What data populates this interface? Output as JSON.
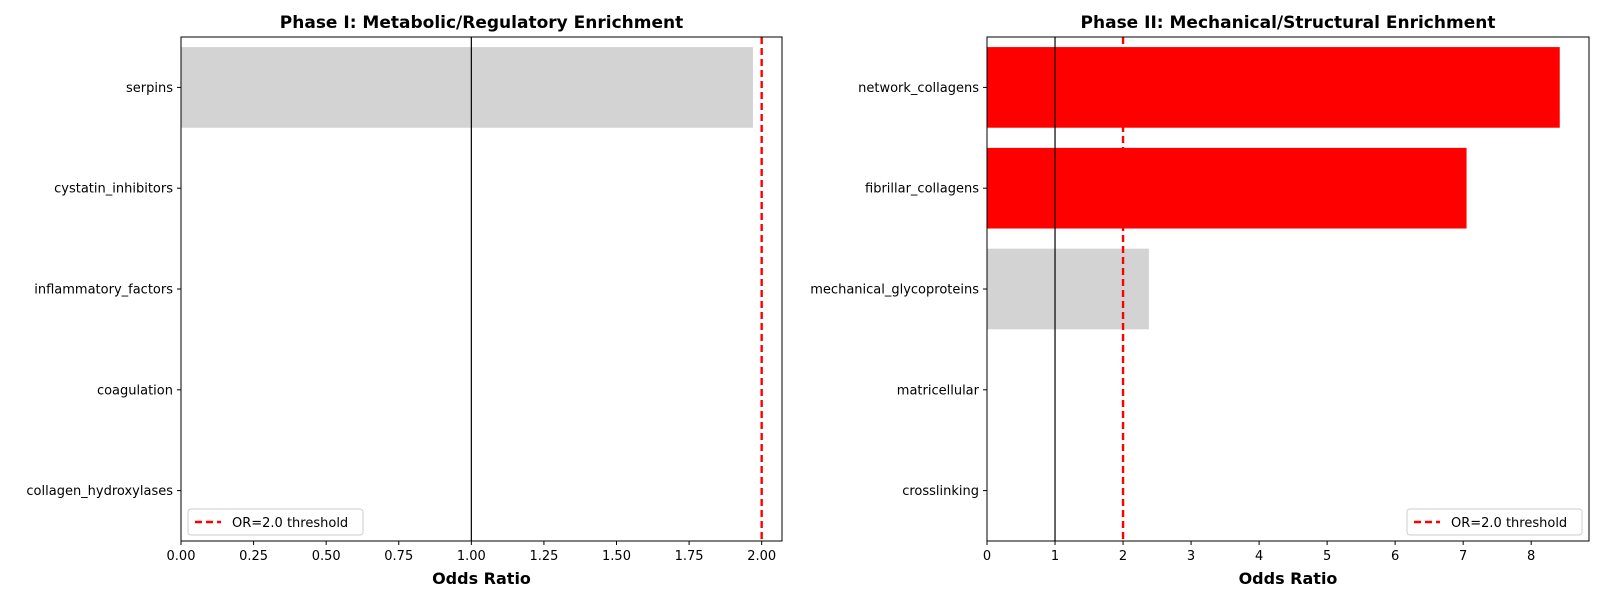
{
  "chart_data": [
    {
      "type": "bar",
      "orientation": "horizontal",
      "title": "Phase I: Metabolic/Regulatory Enrichment",
      "xlabel": "Odds Ratio",
      "ylabel": "",
      "categories": [
        "serpins",
        "cystatin_inhibitors",
        "inflammatory_factors",
        "coagulation",
        "collagen_hydroxylases"
      ],
      "values": [
        1.97,
        0,
        0,
        0,
        0
      ],
      "bar_colors": [
        "#d3d3d3",
        "#d3d3d3",
        "#d3d3d3",
        "#d3d3d3",
        "#d3d3d3"
      ],
      "xlim": [
        0,
        2.07
      ],
      "xticks": [
        "0.00",
        "0.25",
        "0.50",
        "0.75",
        "1.00",
        "1.25",
        "1.50",
        "1.75",
        "2.00"
      ],
      "xtick_values": [
        0,
        0.25,
        0.5,
        0.75,
        1.0,
        1.25,
        1.5,
        1.75,
        2.0
      ],
      "reference_line": 1.0,
      "threshold_line": 2.0,
      "threshold_color": "#ff0000",
      "legend": {
        "label": "OR=2.0 threshold",
        "placement": "lower-left"
      },
      "grid": false
    },
    {
      "type": "bar",
      "orientation": "horizontal",
      "title": "Phase II: Mechanical/Structural Enrichment",
      "xlabel": "Odds Ratio",
      "ylabel": "",
      "categories": [
        "network_collagens",
        "fibrillar_collagens",
        "mechanical_glycoproteins",
        "matricellular",
        "crosslinking"
      ],
      "values": [
        8.42,
        7.05,
        2.38,
        0,
        0
      ],
      "bar_colors": [
        "#ff0000",
        "#ff0000",
        "#d3d3d3",
        "#d3d3d3",
        "#d3d3d3"
      ],
      "xlim": [
        0,
        8.85
      ],
      "xticks": [
        "0",
        "1",
        "2",
        "3",
        "4",
        "5",
        "6",
        "7",
        "8"
      ],
      "xtick_values": [
        0,
        1,
        2,
        3,
        4,
        5,
        6,
        7,
        8
      ],
      "reference_line": 1.0,
      "threshold_line": 2.0,
      "threshold_color": "#ff0000",
      "legend": {
        "label": "OR=2.0 threshold",
        "placement": "lower-right"
      },
      "grid": false
    }
  ]
}
